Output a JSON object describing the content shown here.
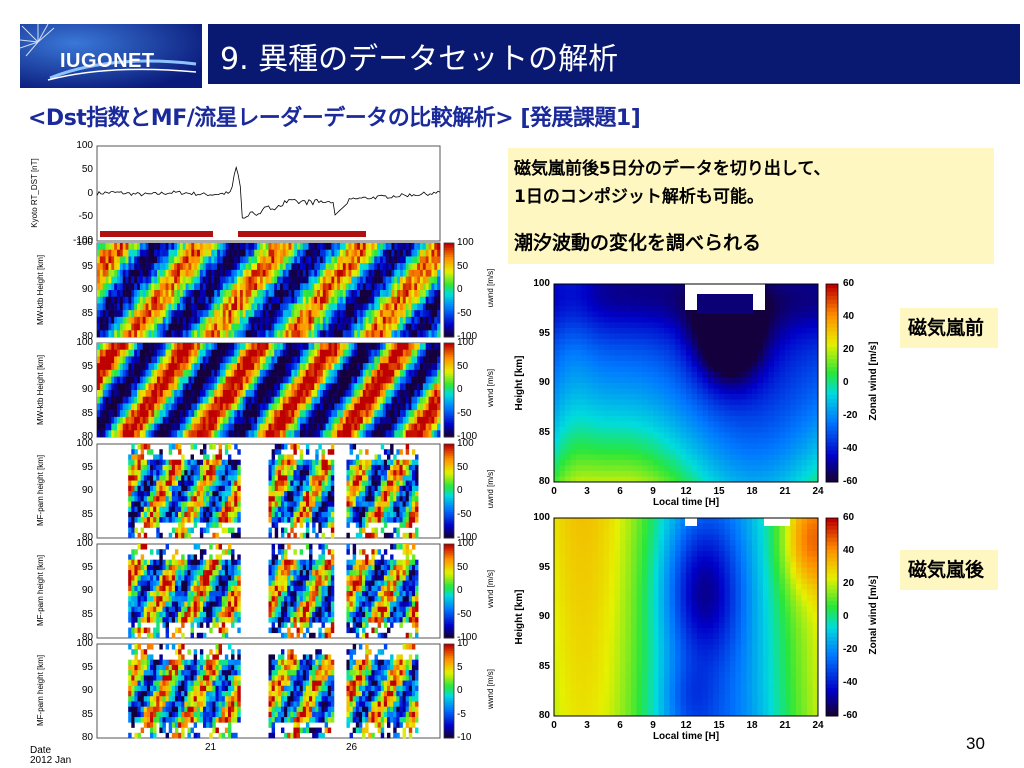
{
  "header": {
    "logo_text": "IUGONET",
    "title": "9. 異種のデータセットの解析"
  },
  "subtitle": "<Dst指数とMF/流星レーダーデータの比較解析> [発展課題1]",
  "notes": {
    "line1": "磁気嵐前後5日分のデータを切り出して、",
    "line2": "1日のコンポジット解析も可能。",
    "line3": "潮汐波動の変化を調べられる"
  },
  "labels": {
    "before": "磁気嵐前",
    "after": "磁気嵐後"
  },
  "page_number": "30",
  "left_panels": {
    "dst": {
      "ylabel": "Kyoto RT_DST [nT]",
      "ticks": [
        "100",
        "50",
        "0",
        "-50",
        "-100"
      ]
    },
    "rows": [
      {
        "ylabel": "MW-ktb Height [km]",
        "cb_label": "uwnd [m/s]",
        "cb_ticks": [
          "100",
          "50",
          "0",
          "-50",
          "-100"
        ]
      },
      {
        "ylabel": "MW-ktb Height [km]",
        "cb_label": "vwnd [m/s]",
        "cb_ticks": [
          "100",
          "50",
          "0",
          "-50",
          "-100"
        ]
      },
      {
        "ylabel": "MF-pam height [km]",
        "cb_label": "uwnd [m/s]",
        "cb_ticks": [
          "100",
          "50",
          "0",
          "-50",
          "-100"
        ]
      },
      {
        "ylabel": "MF-pam height [km]",
        "cb_label": "vwnd [m/s]",
        "cb_ticks": [
          "100",
          "50",
          "0",
          "-50",
          "-100"
        ]
      },
      {
        "ylabel": "MF-pam height [km]",
        "cb_label": "wwnd [m/s]",
        "cb_ticks": [
          "10",
          "5",
          "0",
          "-5",
          "-10"
        ]
      }
    ],
    "height_ticks": [
      "100",
      "95",
      "90",
      "85",
      "80"
    ],
    "x_ticks": [
      "21",
      "26"
    ],
    "date_label": "Date",
    "date_value": "2012 Jan"
  },
  "right_panels": {
    "ylabel": "Height  [km]",
    "xlabel": "Local time [H]",
    "x_ticks": [
      "0",
      "3",
      "6",
      "9",
      "12",
      "15",
      "18",
      "21",
      "24"
    ],
    "y_ticks": [
      "100",
      "95",
      "90",
      "85",
      "80"
    ],
    "cb_label": "Zonal wind [m/s]",
    "cb_ticks": [
      "60",
      "40",
      "20",
      "0",
      "-20",
      "-40",
      "-60"
    ]
  },
  "colors": {
    "title_bg": "#091870",
    "subtitle": "#1a2a9a",
    "note_bg": "#fff7c2",
    "dst_bar": "#b01010"
  }
}
